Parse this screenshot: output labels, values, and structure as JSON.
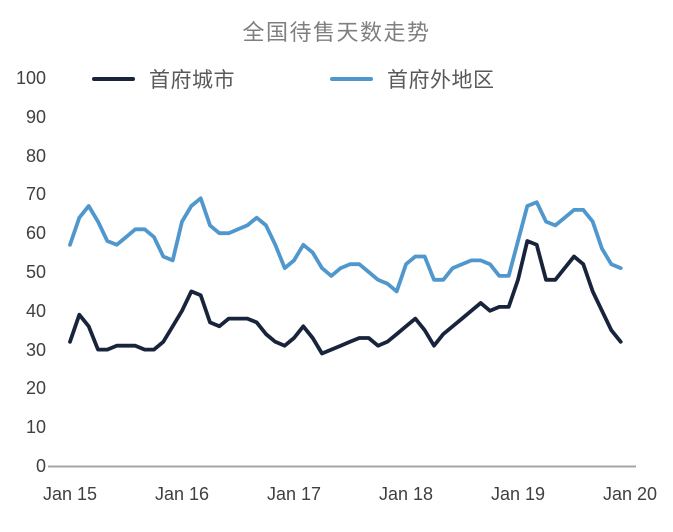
{
  "chart_data": {
    "type": "line",
    "title": "全国待售天数走势",
    "grid": false,
    "legend_position": "top",
    "ylim": [
      0,
      100
    ],
    "y_ticks": [
      0,
      10,
      20,
      30,
      40,
      50,
      60,
      70,
      80,
      90,
      100
    ],
    "x_tick_labels": [
      "Jan 15",
      "Jan 16",
      "Jan 17",
      "Jan 18",
      "Jan 19",
      "Jan 20"
    ],
    "x_start": "2015-01",
    "x_end": "2019-12",
    "x_interval": "monthly",
    "axis_line_color": "#a6a6a6",
    "series": [
      {
        "key": "capital-cities",
        "name": "首府城市",
        "color": "#18243c",
        "values": [
          32,
          39,
          36,
          30,
          30,
          31,
          31,
          31,
          30,
          30,
          32,
          36,
          40,
          45,
          44,
          37,
          36,
          38,
          38,
          38,
          37,
          34,
          32,
          31,
          33,
          36,
          33,
          29,
          30,
          31,
          32,
          33,
          33,
          31,
          32,
          34,
          36,
          38,
          35,
          31,
          34,
          36,
          38,
          40,
          42,
          40,
          41,
          41,
          48,
          58,
          57,
          48,
          48,
          51,
          54,
          52,
          45,
          40,
          35,
          32
        ]
      },
      {
        "key": "non-capital-regions",
        "name": "首府外地区",
        "color": "#4f97cd",
        "values": [
          57,
          64,
          67,
          63,
          58,
          57,
          59,
          61,
          61,
          59,
          54,
          53,
          63,
          67,
          69,
          62,
          60,
          60,
          61,
          62,
          64,
          62,
          57,
          51,
          53,
          57,
          55,
          51,
          49,
          51,
          52,
          52,
          50,
          48,
          47,
          45,
          52,
          54,
          54,
          48,
          48,
          51,
          52,
          53,
          53,
          52,
          49,
          49,
          58,
          67,
          68,
          63,
          62,
          64,
          66,
          66,
          63,
          56,
          52,
          51
        ]
      }
    ]
  }
}
